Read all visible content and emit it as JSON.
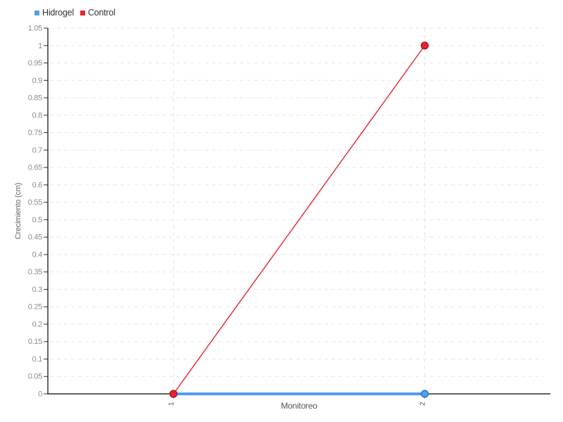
{
  "chart_data": {
    "type": "line",
    "title": "",
    "xlabel": "Monitoreo",
    "ylabel": "Crecimiento (cm)",
    "x_labels": [
      "1",
      "2"
    ],
    "series": [
      {
        "name": "Hidrogel",
        "values": [
          0,
          0
        ],
        "color": "#4f9ef0",
        "point_stroke": "#2b70c9",
        "line_width": 4,
        "point_radius": 5
      },
      {
        "name": "Control",
        "values": [
          0,
          1
        ],
        "color": "#e82230",
        "point_stroke": "#a01522",
        "line_width": 1.4,
        "point_radius": 5
      }
    ],
    "ylim": [
      0,
      1.05
    ],
    "ytick_values": [
      0,
      0.05,
      0.1,
      0.15,
      0.2,
      0.25,
      0.3,
      0.35,
      0.4,
      0.45,
      0.5,
      0.55,
      0.6,
      0.65,
      0.7,
      0.75,
      0.8,
      0.85,
      0.9,
      0.95,
      1,
      1.05
    ],
    "ytick_labels": [
      "0",
      "0.05",
      "0.1",
      "0.15",
      "0.2",
      "0.25",
      "0.3",
      "0.35",
      "0.4",
      "0.45",
      "0.5",
      "0.55",
      "0.6",
      "0.65",
      "0.7",
      "0.75",
      "0.8",
      "0.85",
      "0.9",
      "0.95",
      "1",
      "1.05"
    ],
    "grid": true,
    "grid_style": "dashed",
    "legend_position": "top-left",
    "colors": {
      "background": "#ffffff",
      "grid": "#e5e5e5",
      "axis": "#000000",
      "tick": "#333333",
      "ytick_text": "#8c8c8c",
      "xtick_text": "#555555",
      "legend_text": "#333333",
      "axis_label_text": "#555555"
    }
  }
}
